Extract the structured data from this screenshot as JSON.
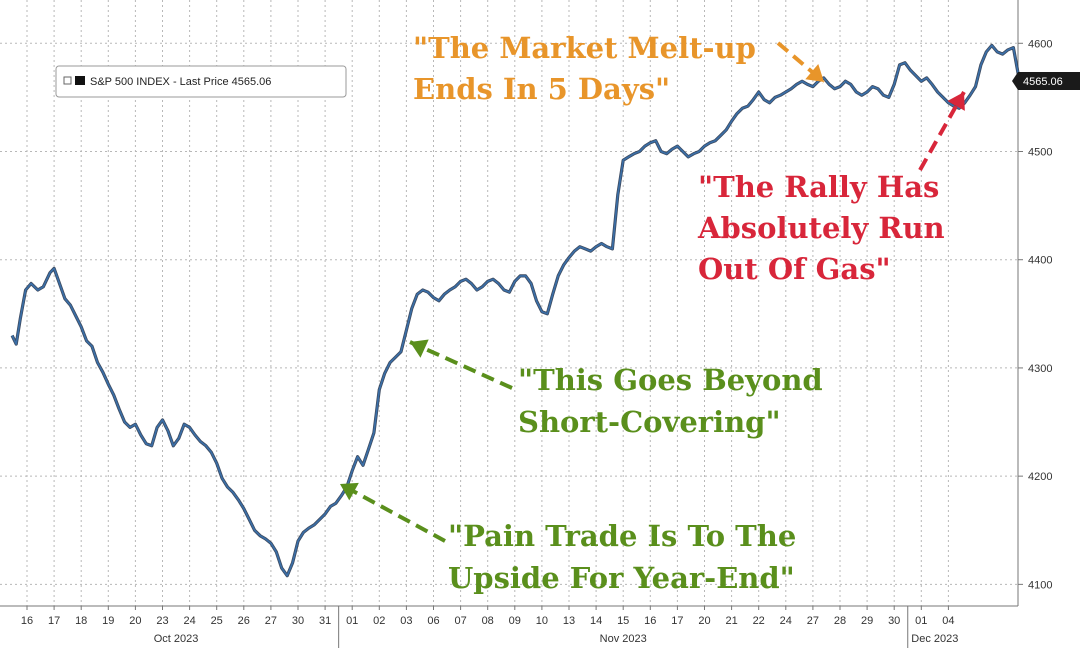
{
  "chart_data": {
    "type": "line",
    "legend": {
      "text": "S&P 500 INDEX - Last Price 4565.06",
      "placement": "top-left"
    },
    "last_price_label": "4565.06",
    "y_axis": {
      "side": "right",
      "ylim": [
        4080,
        4640
      ],
      "ticks": [
        {
          "value": 4100,
          "label": "4100"
        },
        {
          "value": 4200,
          "label": "4200"
        },
        {
          "value": 4300,
          "label": "4300"
        },
        {
          "value": 4400,
          "label": "4400"
        },
        {
          "value": 4500,
          "label": "4500"
        },
        {
          "value": 4600,
          "label": "4600"
        }
      ]
    },
    "x_axis": {
      "day_labels": [
        "16",
        "17",
        "18",
        "19",
        "20",
        "23",
        "24",
        "25",
        "26",
        "27",
        "30",
        "31",
        "01",
        "02",
        "03",
        "06",
        "07",
        "08",
        "09",
        "10",
        "13",
        "14",
        "15",
        "16",
        "17",
        "20",
        "21",
        "22",
        "24",
        "27",
        "28",
        "29",
        "30",
        "01",
        "04"
      ],
      "month_labels": [
        {
          "label": "Oct 2023",
          "start": 0,
          "end": 11
        },
        {
          "label": "Nov 2023",
          "start": 12,
          "end": 32
        },
        {
          "label": "Dec 2023",
          "start": 33,
          "end": 34
        }
      ]
    },
    "grid": true,
    "series": [
      {
        "name": "S&P 500 INDEX",
        "color": "#3a6fa8",
        "points": [
          [
            -0.55,
            4330
          ],
          [
            -0.4,
            4322
          ],
          [
            -0.25,
            4345
          ],
          [
            -0.05,
            4372
          ],
          [
            0.15,
            4378
          ],
          [
            0.4,
            4372
          ],
          [
            0.6,
            4375
          ],
          [
            0.85,
            4388
          ],
          [
            1.0,
            4392
          ],
          [
            1.2,
            4378
          ],
          [
            1.4,
            4364
          ],
          [
            1.6,
            4358
          ],
          [
            1.8,
            4348
          ],
          [
            2.0,
            4338
          ],
          [
            2.2,
            4325
          ],
          [
            2.4,
            4320
          ],
          [
            2.6,
            4305
          ],
          [
            2.8,
            4296
          ],
          [
            3.0,
            4285
          ],
          [
            3.2,
            4275
          ],
          [
            3.4,
            4262
          ],
          [
            3.6,
            4250
          ],
          [
            3.8,
            4245
          ],
          [
            4.0,
            4248
          ],
          [
            4.2,
            4238
          ],
          [
            4.4,
            4230
          ],
          [
            4.6,
            4228
          ],
          [
            4.8,
            4245
          ],
          [
            5.0,
            4252
          ],
          [
            5.2,
            4242
          ],
          [
            5.4,
            4228
          ],
          [
            5.6,
            4235
          ],
          [
            5.8,
            4248
          ],
          [
            6.0,
            4245
          ],
          [
            6.2,
            4238
          ],
          [
            6.4,
            4232
          ],
          [
            6.6,
            4228
          ],
          [
            6.8,
            4222
          ],
          [
            7.0,
            4212
          ],
          [
            7.2,
            4198
          ],
          [
            7.4,
            4190
          ],
          [
            7.6,
            4185
          ],
          [
            7.8,
            4178
          ],
          [
            8.0,
            4170
          ],
          [
            8.2,
            4160
          ],
          [
            8.4,
            4150
          ],
          [
            8.6,
            4145
          ],
          [
            8.8,
            4142
          ],
          [
            9.0,
            4138
          ],
          [
            9.2,
            4130
          ],
          [
            9.4,
            4115
          ],
          [
            9.6,
            4108
          ],
          [
            9.8,
            4120
          ],
          [
            10.0,
            4140
          ],
          [
            10.2,
            4148
          ],
          [
            10.4,
            4152
          ],
          [
            10.6,
            4155
          ],
          [
            10.8,
            4160
          ],
          [
            11.0,
            4165
          ],
          [
            11.2,
            4172
          ],
          [
            11.4,
            4175
          ],
          [
            11.6,
            4182
          ],
          [
            11.8,
            4190
          ],
          [
            12.0,
            4205
          ],
          [
            12.2,
            4218
          ],
          [
            12.4,
            4210
          ],
          [
            12.6,
            4225
          ],
          [
            12.8,
            4240
          ],
          [
            13.0,
            4280
          ],
          [
            13.2,
            4295
          ],
          [
            13.4,
            4305
          ],
          [
            13.6,
            4310
          ],
          [
            13.8,
            4315
          ],
          [
            14.0,
            4335
          ],
          [
            14.2,
            4355
          ],
          [
            14.4,
            4368
          ],
          [
            14.6,
            4372
          ],
          [
            14.8,
            4370
          ],
          [
            15.0,
            4365
          ],
          [
            15.2,
            4362
          ],
          [
            15.4,
            4368
          ],
          [
            15.6,
            4372
          ],
          [
            15.8,
            4375
          ],
          [
            16.0,
            4380
          ],
          [
            16.2,
            4382
          ],
          [
            16.4,
            4378
          ],
          [
            16.6,
            4372
          ],
          [
            16.8,
            4375
          ],
          [
            17.0,
            4380
          ],
          [
            17.2,
            4382
          ],
          [
            17.4,
            4378
          ],
          [
            17.6,
            4372
          ],
          [
            17.8,
            4370
          ],
          [
            18.0,
            4380
          ],
          [
            18.2,
            4385
          ],
          [
            18.4,
            4385
          ],
          [
            18.6,
            4378
          ],
          [
            18.8,
            4362
          ],
          [
            19.0,
            4352
          ],
          [
            19.2,
            4350
          ],
          [
            19.4,
            4368
          ],
          [
            19.6,
            4385
          ],
          [
            19.8,
            4395
          ],
          [
            20.0,
            4402
          ],
          [
            20.2,
            4408
          ],
          [
            20.4,
            4412
          ],
          [
            20.6,
            4410
          ],
          [
            20.8,
            4408
          ],
          [
            21.0,
            4412
          ],
          [
            21.2,
            4415
          ],
          [
            21.4,
            4412
          ],
          [
            21.6,
            4410
          ],
          [
            21.8,
            4460
          ],
          [
            22.0,
            4492
          ],
          [
            22.2,
            4495
          ],
          [
            22.4,
            4498
          ],
          [
            22.6,
            4500
          ],
          [
            22.8,
            4505
          ],
          [
            23.0,
            4508
          ],
          [
            23.2,
            4510
          ],
          [
            23.4,
            4500
          ],
          [
            23.6,
            4498
          ],
          [
            23.8,
            4502
          ],
          [
            24.0,
            4505
          ],
          [
            24.2,
            4500
          ],
          [
            24.4,
            4495
          ],
          [
            24.6,
            4498
          ],
          [
            24.8,
            4500
          ],
          [
            25.0,
            4505
          ],
          [
            25.2,
            4508
          ],
          [
            25.4,
            4510
          ],
          [
            25.6,
            4515
          ],
          [
            25.8,
            4520
          ],
          [
            26.0,
            4528
          ],
          [
            26.2,
            4535
          ],
          [
            26.4,
            4540
          ],
          [
            26.6,
            4542
          ],
          [
            26.8,
            4548
          ],
          [
            27.0,
            4555
          ],
          [
            27.2,
            4548
          ],
          [
            27.4,
            4545
          ],
          [
            27.6,
            4550
          ],
          [
            27.8,
            4552
          ],
          [
            28.0,
            4555
          ],
          [
            28.2,
            4558
          ],
          [
            28.4,
            4562
          ],
          [
            28.6,
            4565
          ],
          [
            28.8,
            4562
          ],
          [
            29.0,
            4560
          ],
          [
            29.2,
            4565
          ],
          [
            29.4,
            4568
          ],
          [
            29.6,
            4562
          ],
          [
            29.8,
            4558
          ],
          [
            30.0,
            4560
          ],
          [
            30.2,
            4565
          ],
          [
            30.4,
            4562
          ],
          [
            30.6,
            4555
          ],
          [
            30.8,
            4552
          ],
          [
            31.0,
            4555
          ],
          [
            31.2,
            4560
          ],
          [
            31.4,
            4558
          ],
          [
            31.6,
            4552
          ],
          [
            31.8,
            4550
          ],
          [
            32.0,
            4562
          ],
          [
            32.2,
            4580
          ],
          [
            32.4,
            4582
          ],
          [
            32.6,
            4575
          ],
          [
            32.8,
            4570
          ],
          [
            33.0,
            4565
          ],
          [
            33.2,
            4568
          ],
          [
            33.4,
            4562
          ],
          [
            33.6,
            4555
          ],
          [
            33.8,
            4550
          ],
          [
            34.0,
            4545
          ],
          [
            34.2,
            4542
          ],
          [
            34.4,
            4540
          ],
          [
            34.6,
            4545
          ],
          [
            34.8,
            4552
          ],
          [
            35.0,
            4560
          ],
          [
            35.2,
            4580
          ],
          [
            35.4,
            4592
          ],
          [
            35.6,
            4598
          ],
          [
            35.8,
            4592
          ],
          [
            36.0,
            4590
          ],
          [
            36.2,
            4594
          ],
          [
            36.4,
            4596
          ],
          [
            36.6,
            4568
          ],
          [
            36.75,
            4565.06
          ]
        ]
      }
    ],
    "annotations": [
      {
        "lines": [
          "\"The Market Melt-up",
          "Ends In 5 Days\""
        ],
        "color": "#e8952a"
      },
      {
        "lines": [
          "\"The Rally Has",
          "Absolutely Run",
          "Out Of Gas\""
        ],
        "color": "#d8263a"
      },
      {
        "lines": [
          "\"This Goes Beyond",
          "Short-Covering\""
        ],
        "color": "#5a8f1c"
      },
      {
        "lines": [
          "\"Pain Trade Is To The",
          "Upside For Year-End\""
        ],
        "color": "#5a8f1c"
      }
    ]
  }
}
